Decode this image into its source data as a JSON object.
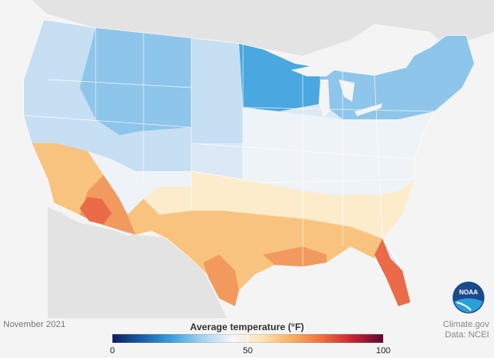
{
  "date_label": "November 2021",
  "legend": {
    "title": "Average temperature (°F)",
    "min": "0",
    "mid": "50",
    "max": "100",
    "tick_values": [
      0,
      50,
      100
    ],
    "colors": [
      "#0a1e5e",
      "#1b5fa8",
      "#3ea2dc",
      "#a8d3ef",
      "#f5f7fa",
      "#fbe3b0",
      "#f7ad5f",
      "#ee6b3f",
      "#c42335",
      "#5a0a2c"
    ]
  },
  "credit": {
    "source": "Climate.gov",
    "data": "Data: NCEI"
  },
  "logo_text": "NOAA",
  "region_colors": {
    "cold": "#8ec5ea",
    "coldest": "#4aa7e0",
    "cool": "#c7dff2",
    "neutral": "#eef3f8",
    "mild": "#fdeccb",
    "warm": "#f8c37e",
    "hot": "#f29a5e",
    "hottest": "#eb6a48"
  }
}
